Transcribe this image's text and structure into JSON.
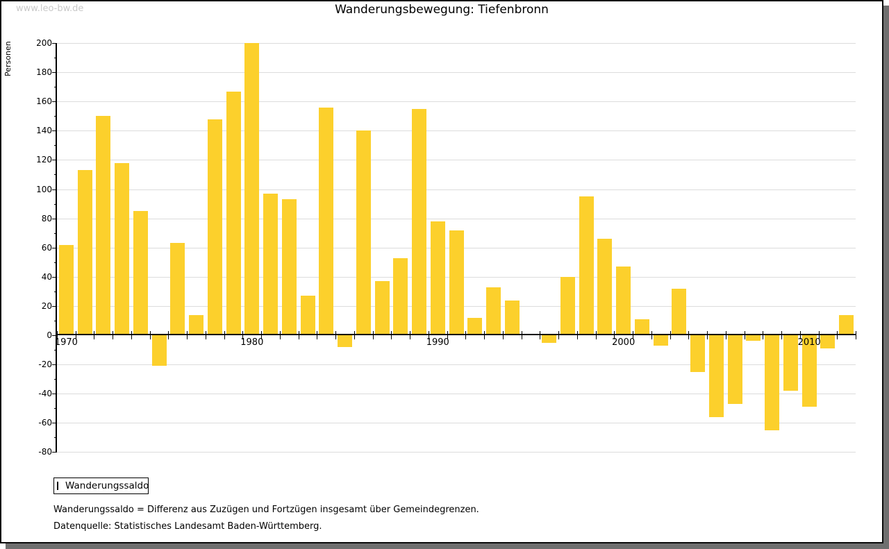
{
  "watermark": "www.leo-bw.de",
  "chart_data": {
    "type": "bar",
    "title": "Wanderungsbewegung: Tiefenbronn",
    "ylabel": "Personen",
    "xlabel": "",
    "ylim": [
      -80,
      200
    ],
    "ytick_step": 20,
    "grid": true,
    "legend_position": "bottom-left",
    "bar_color": "#fcd02c",
    "categories": [
      1970,
      1971,
      1972,
      1973,
      1974,
      1975,
      1976,
      1977,
      1978,
      1979,
      1980,
      1981,
      1982,
      1983,
      1984,
      1985,
      1986,
      1987,
      1988,
      1989,
      1990,
      1991,
      1992,
      1993,
      1994,
      1995,
      1996,
      1997,
      1998,
      1999,
      2000,
      2001,
      2002,
      2003,
      2004,
      2005,
      2006,
      2007,
      2008,
      2009,
      2010,
      2011,
      2012
    ],
    "xtick_labels": [
      1970,
      1980,
      1990,
      2000,
      2010
    ],
    "series": [
      {
        "name": "Wanderungssaldo",
        "values": [
          61,
          112,
          149,
          117,
          84,
          -21,
          62,
          13,
          147,
          166,
          199,
          96,
          92,
          26,
          155,
          -8,
          139,
          36,
          52,
          154,
          77,
          71,
          11,
          32,
          23,
          0,
          -5,
          39,
          94,
          65,
          46,
          10,
          -7,
          31,
          -25,
          -56,
          -47,
          -4,
          -65,
          -38,
          -49,
          -9,
          13
        ]
      }
    ]
  },
  "footnotes": {
    "definition": "Wanderungssaldo = Differenz aus Zuzügen und Fortzügen insgesamt über Gemeindegrenzen.",
    "source": "Datenquelle: Statistisches Landesamt Baden-Württemberg."
  }
}
